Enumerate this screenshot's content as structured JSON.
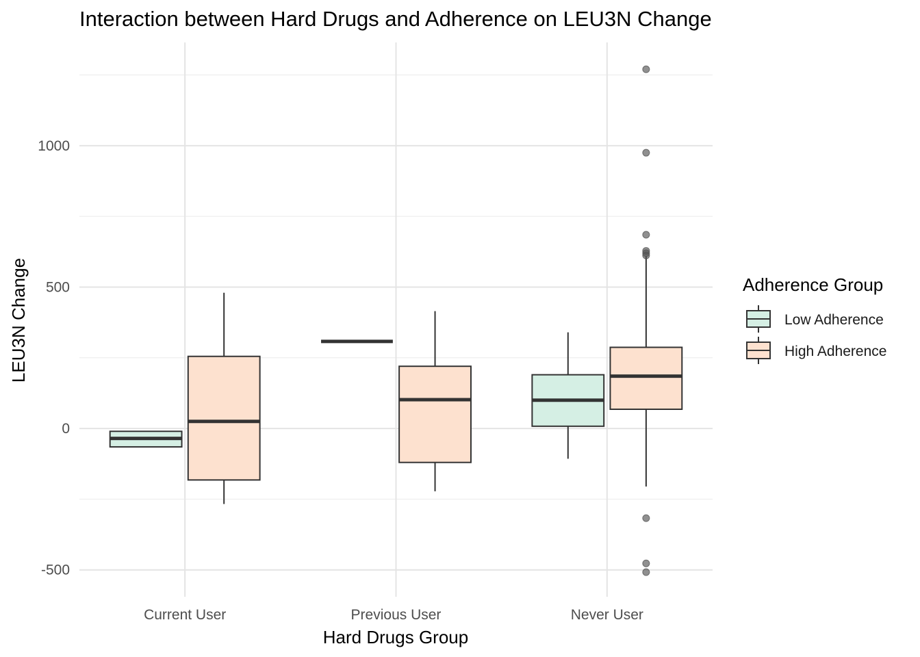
{
  "chart_data": {
    "type": "box",
    "title": "Interaction between Hard Drugs and Adherence on LEU3N Change",
    "xlabel": "Hard Drugs Group",
    "ylabel": "LEU3N Change",
    "categories": [
      "Current User",
      "Previous User",
      "Never User"
    ],
    "ylim": [
      -595,
      1365
    ],
    "yticks": [
      -500,
      0,
      500,
      1000
    ],
    "ytick_labels": [
      "-500",
      "0",
      "500",
      "1000"
    ],
    "grid": true,
    "legend": {
      "title": "Adherence Group",
      "position": "right",
      "entries": [
        "Low Adherence",
        "High Adherence"
      ]
    },
    "series": [
      {
        "name": "Low Adherence",
        "color": "#d5efe4",
        "boxes": [
          {
            "category": "Current User",
            "min": -65,
            "q1": -65,
            "median": -35,
            "q3": -10,
            "max": -10,
            "outliers": []
          },
          {
            "category": "Previous User",
            "min": 308,
            "q1": 308,
            "median": 308,
            "q3": 308,
            "max": 308,
            "outliers": []
          },
          {
            "category": "Never User",
            "min": -107,
            "q1": 8,
            "median": 100,
            "q3": 190,
            "max": 340,
            "outliers": []
          }
        ]
      },
      {
        "name": "High Adherence",
        "color": "#fde1cf",
        "boxes": [
          {
            "category": "Current User",
            "min": -267,
            "q1": -182,
            "median": 25,
            "q3": 255,
            "max": 480,
            "outliers": []
          },
          {
            "category": "Previous User",
            "min": -222,
            "q1": -120,
            "median": 102,
            "q3": 220,
            "max": 415,
            "outliers": []
          },
          {
            "category": "Never User",
            "min": -205,
            "q1": 68,
            "median": 185,
            "q3": 287,
            "max": 610,
            "outliers": [
              1270,
              975,
              685,
              628,
              620,
              612,
              -317,
              -477,
              -508
            ]
          }
        ]
      }
    ]
  }
}
